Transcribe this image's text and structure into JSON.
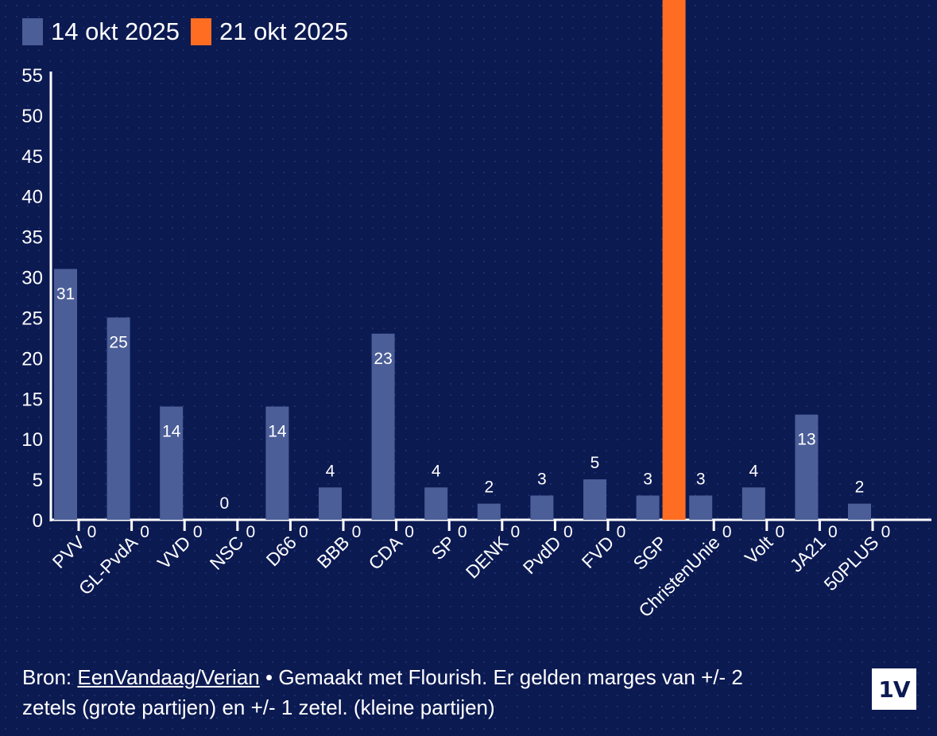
{
  "legend": [
    {
      "label": "14 okt 2025",
      "color": "#4b5e98"
    },
    {
      "label": "21 okt 2025",
      "color": "#ff6d22"
    }
  ],
  "chart_data": {
    "type": "bar",
    "categories": [
      "PVV",
      "GL-PvdA",
      "VVD",
      "NSC",
      "D66",
      "BBB",
      "CDA",
      "SP",
      "DENK",
      "PvdD",
      "FVD",
      "SGP",
      "ChristenUnie",
      "Volt",
      "JA21",
      "50PLUS"
    ],
    "series": [
      {
        "name": "14 okt 2025",
        "color": "#4b5e98",
        "values": [
          31,
          25,
          14,
          0,
          14,
          4,
          23,
          4,
          2,
          3,
          5,
          3,
          3,
          4,
          13,
          2
        ]
      },
      {
        "name": "21 okt 2025",
        "color": "#ff6d22",
        "values": [
          0,
          0,
          0,
          0,
          0,
          0,
          0,
          0,
          0,
          0,
          0,
          null,
          0,
          0,
          0,
          0
        ]
      }
    ],
    "highlight_value_orange_SGP_full_height": true,
    "ylim": [
      0,
      55
    ],
    "yticks": [
      0,
      5,
      10,
      15,
      20,
      25,
      30,
      35,
      40,
      45,
      50,
      55
    ],
    "xlabel": "",
    "ylabel": "",
    "grid": false,
    "legend_position": "top-left"
  },
  "footer": {
    "source_prefix": "Bron: ",
    "source_link": "EenVandaag/Verian",
    "source_rest": " • Gemaakt met Flourish. Er gelden marges van +/- 2",
    "line2": "zetels (grote partijen) en +/- 1 zetel. (kleine partijen)"
  },
  "logo_text": "1V"
}
